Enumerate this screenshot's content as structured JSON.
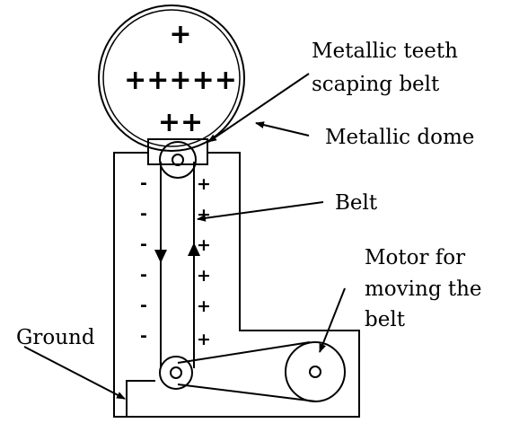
{
  "labels": {
    "teeth_line1": "Metallic teeth",
    "teeth_line2": "scaping belt",
    "dome": "Metallic dome",
    "belt": "Belt",
    "motor_line1": "Motor for",
    "motor_line2": "moving the",
    "motor_line3": "belt",
    "ground": "Ground"
  },
  "dome_charges": {
    "row1": "+",
    "row2": "+++++",
    "row3": "++"
  },
  "left_charges": [
    "-",
    "-",
    "-",
    "-",
    "-",
    "-"
  ],
  "right_charges": [
    "+",
    "+",
    "+",
    "+",
    "+",
    "+"
  ]
}
